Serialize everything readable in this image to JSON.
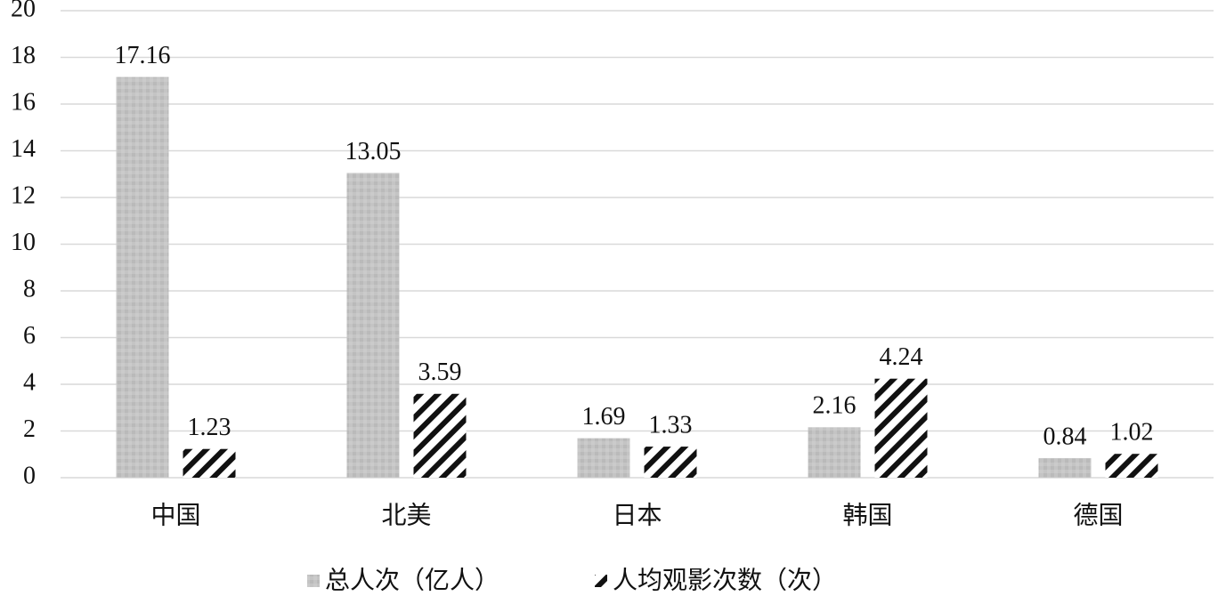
{
  "chart_data": {
    "type": "bar",
    "categories": [
      "中国",
      "北美",
      "日本",
      "韩国",
      "德国"
    ],
    "series": [
      {
        "name": "总人次（亿人）",
        "color": "#c4c4c4",
        "values": [
          17.16,
          13.05,
          1.69,
          2.16,
          0.84
        ]
      },
      {
        "name": "人均观影次数（次）",
        "color": "#111111",
        "values": [
          1.23,
          3.59,
          1.33,
          4.24,
          1.02
        ]
      }
    ],
    "ylim": [
      0,
      20
    ],
    "yticks": [
      0,
      2,
      4,
      6,
      8,
      10,
      12,
      14,
      16,
      18,
      20
    ],
    "grid": true,
    "legend": "bottom"
  }
}
